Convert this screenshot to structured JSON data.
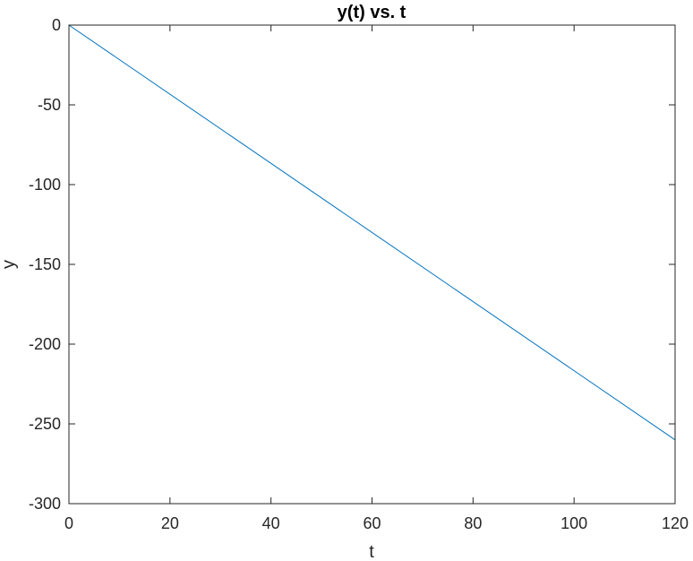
{
  "chart_data": {
    "type": "line",
    "title": "y(t) vs. t",
    "xlabel": "t",
    "ylabel": "y",
    "xlim": [
      0,
      120
    ],
    "ylim": [
      -300,
      0
    ],
    "xticks": [
      0,
      20,
      40,
      60,
      80,
      100,
      120
    ],
    "yticks": [
      0,
      -50,
      -100,
      -150,
      -200,
      -250,
      -300
    ],
    "grid": false,
    "series": [
      {
        "color": "#0072BD",
        "x": [
          0,
          120
        ],
        "y": [
          0,
          -260
        ]
      }
    ]
  }
}
